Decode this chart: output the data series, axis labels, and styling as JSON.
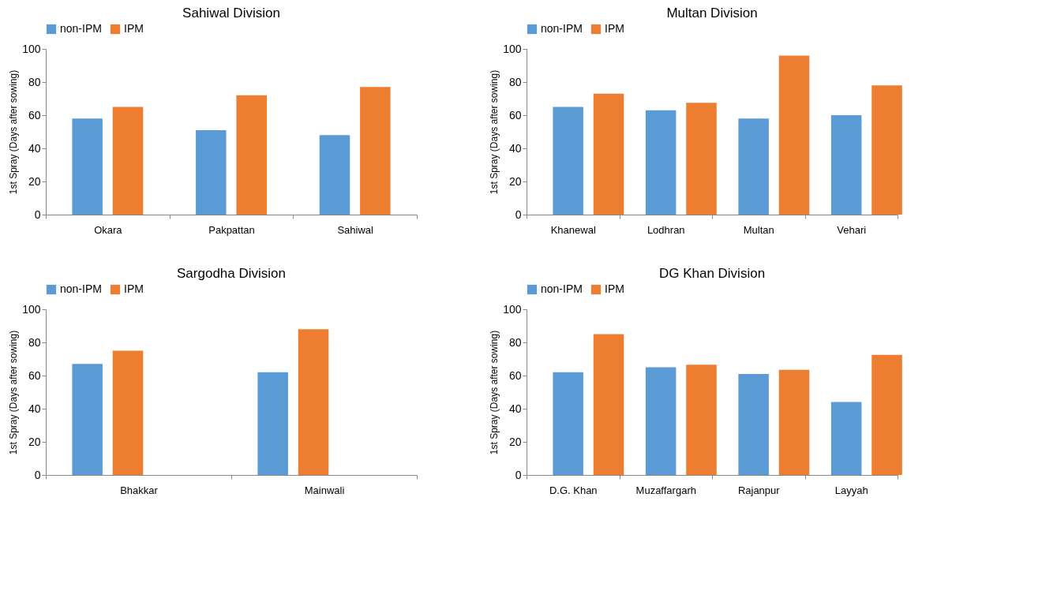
{
  "chart_data": [
    {
      "type": "bar",
      "title": "Sahiwal Division",
      "ylabel": "1st Spray (Days after sowing)",
      "categories": [
        "Okara",
        "Pakpattan",
        "Sahiwal"
      ],
      "series": [
        {
          "name": "non-IPM",
          "color": "#5b9bd5",
          "values": [
            58,
            51,
            48
          ]
        },
        {
          "name": "IPM",
          "color": "#ed7d31",
          "values": [
            65,
            72,
            77
          ]
        }
      ],
      "ylim": [
        0,
        100
      ],
      "yticks": [
        0,
        20,
        40,
        60,
        80,
        100
      ],
      "grid": false,
      "legend": "top"
    },
    {
      "type": "bar",
      "title": "Multan Division",
      "ylabel": "1st Spray (Days after sowing)",
      "categories": [
        "Khanewal",
        "Lodhran",
        "Multan",
        "Vehari"
      ],
      "series": [
        {
          "name": "non-IPM",
          "color": "#5b9bd5",
          "values": [
            65,
            63,
            58,
            60
          ]
        },
        {
          "name": "IPM",
          "color": "#ed7d31",
          "values": [
            73,
            67.5,
            96,
            78
          ]
        }
      ],
      "ylim": [
        0,
        100
      ],
      "yticks": [
        0,
        20,
        40,
        60,
        80,
        100
      ],
      "grid": false,
      "legend": "top"
    },
    {
      "type": "bar",
      "title": "Sargodha Division",
      "ylabel": "1st Spray (Days after sowing)",
      "categories": [
        "Bhakkar",
        "Mainwali"
      ],
      "series": [
        {
          "name": "non-IPM",
          "color": "#5b9bd5",
          "values": [
            67,
            62
          ]
        },
        {
          "name": "IPM",
          "color": "#ed7d31",
          "values": [
            75,
            88
          ]
        }
      ],
      "ylim": [
        0,
        100
      ],
      "yticks": [
        0,
        20,
        40,
        60,
        80,
        100
      ],
      "grid": false,
      "legend": "top"
    },
    {
      "type": "bar",
      "title": "DG Khan Division",
      "ylabel": "1st Spray (Days after sowing)",
      "categories": [
        "D.G. Khan",
        "Muzaffargarh",
        "Rajanpur",
        "Layyah"
      ],
      "series": [
        {
          "name": "non-IPM",
          "color": "#5b9bd5",
          "values": [
            62,
            65,
            61,
            44
          ]
        },
        {
          "name": "IPM",
          "color": "#ed7d31",
          "values": [
            85,
            66.5,
            63.5,
            72.5
          ]
        }
      ],
      "ylim": [
        0,
        100
      ],
      "yticks": [
        0,
        20,
        40,
        60,
        80,
        100
      ],
      "grid": false,
      "legend": "top"
    }
  ]
}
